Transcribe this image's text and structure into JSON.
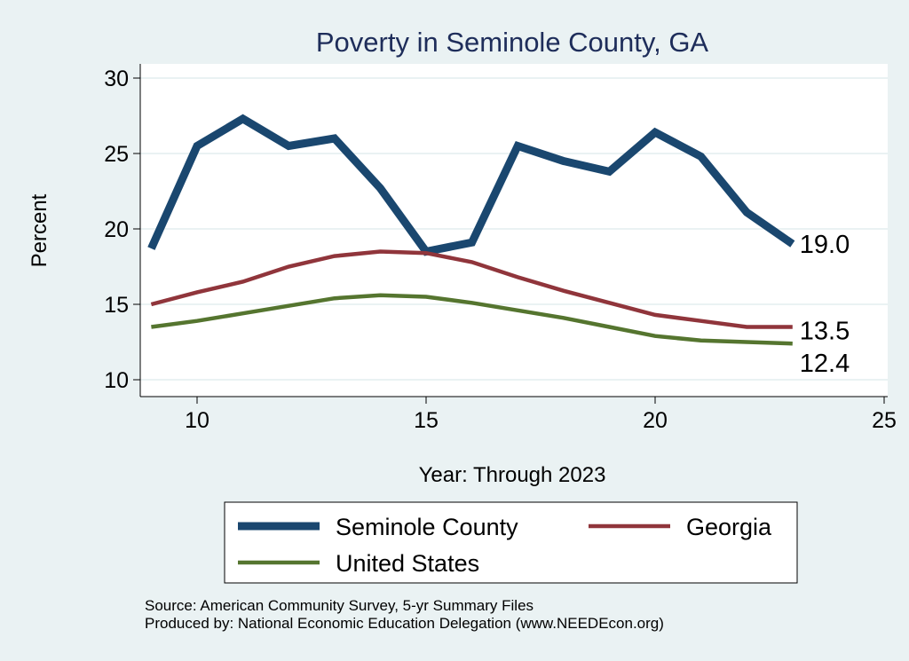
{
  "chart_data": {
    "type": "line",
    "title": "Poverty in Seminole County, GA",
    "xlabel": "Year: Through 2023",
    "ylabel": "Percent",
    "xlim": [
      8.8,
      25.3
    ],
    "ylim": [
      9.2,
      30.9
    ],
    "xticks": [
      10,
      15,
      20,
      25
    ],
    "yticks": [
      10,
      15,
      20,
      25,
      30
    ],
    "grid": true,
    "legend_position": "bottom",
    "x": [
      9,
      10,
      11,
      12,
      13,
      14,
      15,
      16,
      17,
      18,
      19,
      20,
      21,
      22,
      23
    ],
    "series": [
      {
        "name": "Seminole County",
        "color": "#1a476f",
        "values": [
          18.7,
          25.5,
          27.3,
          25.5,
          26.0,
          22.7,
          18.5,
          19.1,
          25.5,
          24.5,
          23.8,
          26.4,
          24.8,
          21.1,
          19.0
        ],
        "end_label": "19.0"
      },
      {
        "name": "Georgia",
        "color": "#90353b",
        "values": [
          15.0,
          15.8,
          16.5,
          17.5,
          18.2,
          18.5,
          18.4,
          17.8,
          16.8,
          15.9,
          15.1,
          14.3,
          13.9,
          13.5,
          13.5
        ],
        "end_label": "13.5"
      },
      {
        "name": "United States",
        "color": "#55752f",
        "values": [
          13.5,
          13.9,
          14.4,
          14.9,
          15.4,
          15.6,
          15.5,
          15.1,
          14.6,
          14.1,
          13.5,
          12.9,
          12.6,
          12.5,
          12.4
        ],
        "end_label": "12.4"
      }
    ],
    "notes": [
      "Source: American Community Survey, 5-yr Summary Files",
      "Produced by: National Economic Education Delegation (www.NEEDEcon.org)"
    ]
  }
}
